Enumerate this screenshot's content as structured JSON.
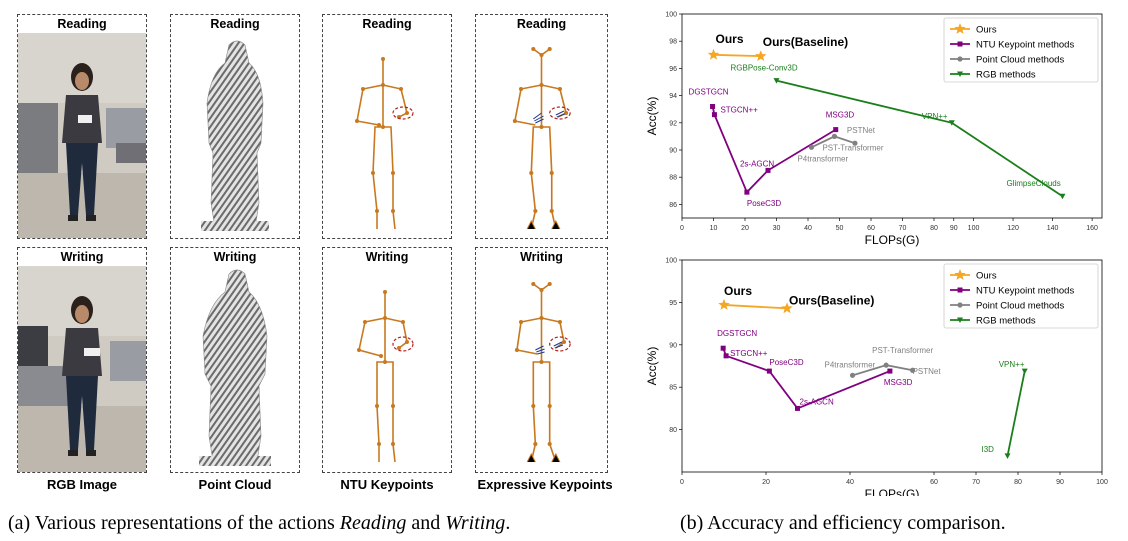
{
  "left_figure": {
    "columns": [
      {
        "key": "rgb",
        "label": "RGB Image"
      },
      {
        "key": "pc",
        "label": "Point Cloud"
      },
      {
        "key": "ntu",
        "label": "NTU Keypoints"
      },
      {
        "key": "exp",
        "label": "Expressive Keypoints"
      }
    ],
    "rows": [
      {
        "key": "reading",
        "title": "Reading"
      },
      {
        "key": "writing",
        "title": "Writing"
      }
    ],
    "caption": {
      "prefix": "(a) Various representations of the actions ",
      "action1": "Reading",
      "middle": " and ",
      "action2": "Writing",
      "suffix": "."
    }
  },
  "right_caption": "(b) Accuracy and efficiency comparison.",
  "colors": {
    "ours": "#f5a623",
    "ntu": "#800080",
    "pc": "#808080",
    "rgb": "#1a7f1a",
    "skeleton": "#c8791f",
    "highlight": "#b22222",
    "hand": "#1f3a93"
  },
  "chart_data": [
    {
      "type": "line",
      "xlabel": "FLOPs(G)",
      "ylabel": "Acc(%)",
      "xlim": [
        0,
        165
      ],
      "ylim": [
        85,
        100
      ],
      "x_break": {
        "at": 80,
        "right_start": 80,
        "right_end": 165
      },
      "xticks": [
        0,
        10,
        20,
        30,
        40,
        50,
        60,
        70,
        80,
        90,
        100,
        120,
        140,
        160
      ],
      "yticks": [
        86,
        88,
        90,
        92,
        94,
        96,
        98,
        100
      ],
      "grid": false,
      "legend": {
        "position": "top-right",
        "entries": [
          {
            "label": "Ours",
            "series": "ours"
          },
          {
            "label": "NTU Keypoint methods",
            "series": "ntu"
          },
          {
            "label": "Point Cloud methods",
            "series": "pc"
          },
          {
            "label": "RGB methods",
            "series": "rgb"
          }
        ]
      },
      "series": [
        {
          "id": "ours",
          "marker": "star",
          "points": [
            {
              "x": 10,
              "y": 97.0,
              "label": "Ours",
              "bold": true
            },
            {
              "x": 25,
              "y": 96.9,
              "label": "Ours(Baseline)",
              "bold": true
            }
          ]
        },
        {
          "id": "ntu",
          "marker": "square",
          "points": [
            {
              "x": 9.7,
              "y": 93.2,
              "label": "DGSTGCN"
            },
            {
              "x": 10.3,
              "y": 92.6,
              "label": "STGCN++"
            },
            {
              "x": 20.6,
              "y": 86.9,
              "label": "PoseC3D"
            },
            {
              "x": 27.3,
              "y": 88.5,
              "label": "2s-AGCN"
            },
            {
              "x": 48.8,
              "y": 91.5,
              "label": "MSG3D"
            }
          ]
        },
        {
          "id": "pc",
          "marker": "circle",
          "points": [
            {
              "x": 41.1,
              "y": 90.2,
              "label": "P4transformer"
            },
            {
              "x": 48.4,
              "y": 91.0,
              "label": "PST-Transformer"
            },
            {
              "x": 54.9,
              "y": 90.5,
              "label": "PSTNet"
            }
          ]
        },
        {
          "id": "rgb",
          "marker": "triangle",
          "points": [
            {
              "x": 30,
              "y": 95.1,
              "label": "RGBPose-Conv3D"
            },
            {
              "x": 89,
              "y": 92.0,
              "label": "VPN++"
            },
            {
              "x": 145,
              "y": 86.6,
              "label": "GlimpseClouds"
            }
          ]
        }
      ]
    },
    {
      "type": "line",
      "xlabel": "FLOPs(G)",
      "ylabel": "Acc(%)",
      "xlim": [
        0,
        100
      ],
      "ylim": [
        75,
        100
      ],
      "xticks": [
        0,
        20,
        40,
        60,
        70,
        80,
        90,
        100
      ],
      "yticks": [
        80,
        85,
        90,
        95,
        100
      ],
      "grid": false,
      "legend": {
        "position": "top-right",
        "entries": [
          {
            "label": "Ours",
            "series": "ours"
          },
          {
            "label": "NTU Keypoint methods",
            "series": "ntu"
          },
          {
            "label": "Point Cloud methods",
            "series": "pc"
          },
          {
            "label": "RGB methods",
            "series": "rgb"
          }
        ]
      },
      "series": [
        {
          "id": "ours",
          "marker": "star",
          "points": [
            {
              "x": 10,
              "y": 94.7,
              "label": "Ours",
              "bold": true
            },
            {
              "x": 25,
              "y": 94.3,
              "label": "Ours(Baseline)",
              "bold": true
            }
          ]
        },
        {
          "id": "ntu",
          "marker": "square",
          "points": [
            {
              "x": 9.8,
              "y": 89.6,
              "label": "DGSTGCN"
            },
            {
              "x": 10.5,
              "y": 88.7,
              "label": "STGCN++"
            },
            {
              "x": 20.8,
              "y": 86.9,
              "label": "PoseC3D"
            },
            {
              "x": 27.5,
              "y": 82.5,
              "label": "2s-AGCN"
            },
            {
              "x": 49.5,
              "y": 86.9,
              "label": "MSG3D"
            }
          ]
        },
        {
          "id": "pc",
          "marker": "circle",
          "points": [
            {
              "x": 40.6,
              "y": 86.4,
              "label": "P4transformer"
            },
            {
              "x": 48.6,
              "y": 87.6,
              "label": "PST-Transformer"
            },
            {
              "x": 54.9,
              "y": 87.0,
              "label": "PSTNet"
            }
          ]
        },
        {
          "id": "rgb",
          "marker": "triangle",
          "points": [
            {
              "x": 77.5,
              "y": 76.9,
              "label": "I3D"
            },
            {
              "x": 81.6,
              "y": 86.9,
              "label": "VPN++"
            }
          ]
        }
      ]
    }
  ]
}
